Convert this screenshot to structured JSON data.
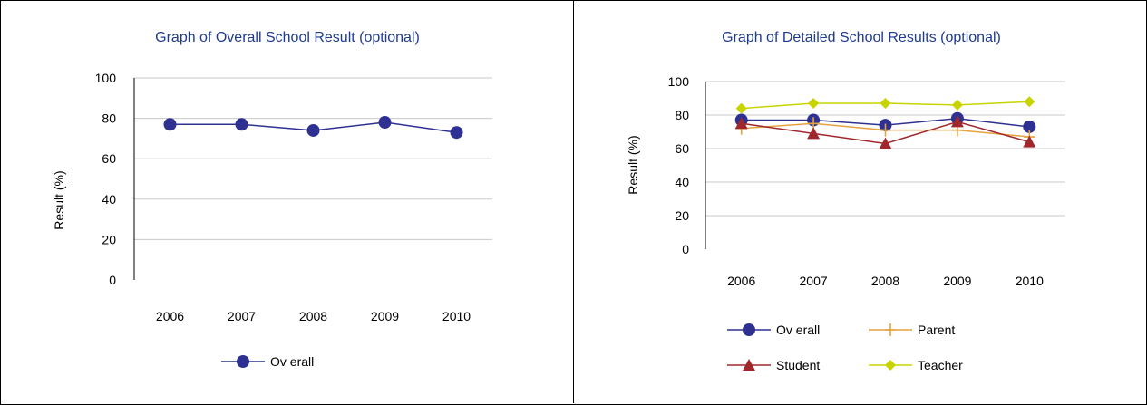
{
  "colors": {
    "overall": "#2e3192",
    "parent": "#e6a23c",
    "student": "#a0282d",
    "teacher": "#c8d400",
    "grid": "#c8c8c8",
    "title": "#1f3b8f"
  },
  "chart_data": [
    {
      "type": "line",
      "title": "Graph of Overall School Result (optional)",
      "xlabel": "",
      "ylabel": "Result (%)",
      "categories": [
        "2006",
        "2007",
        "2008",
        "2009",
        "2010"
      ],
      "ylim": [
        0,
        100
      ],
      "yticks": [
        "0",
        "20",
        "40",
        "60",
        "80",
        "100"
      ],
      "grid": true,
      "legend_position": "bottom",
      "series": [
        {
          "name": "Ov erall",
          "values": [
            77,
            77,
            74,
            78,
            73
          ],
          "color": "#2e3192",
          "marker": "circle"
        }
      ]
    },
    {
      "type": "line",
      "title": "Graph of Detailed School Results (optional)",
      "xlabel": "",
      "ylabel": "Result (%)",
      "categories": [
        "2006",
        "2007",
        "2008",
        "2009",
        "2010"
      ],
      "ylim": [
        0,
        100
      ],
      "yticks": [
        "0",
        "20",
        "40",
        "60",
        "80",
        "100"
      ],
      "grid": true,
      "legend_position": "bottom",
      "series": [
        {
          "name": "Ov erall",
          "values": [
            77,
            77,
            74,
            78,
            73
          ],
          "color": "#2e3192",
          "marker": "circle"
        },
        {
          "name": "Parent",
          "values": [
            72,
            75,
            71,
            71,
            67
          ],
          "color": "#e6a23c",
          "marker": "plus"
        },
        {
          "name": "Student",
          "values": [
            75,
            69,
            63,
            76,
            64
          ],
          "color": "#a0282d",
          "marker": "triangle"
        },
        {
          "name": "Teacher",
          "values": [
            84,
            87,
            87,
            86,
            88
          ],
          "color": "#c8d400",
          "marker": "diamond"
        }
      ]
    }
  ]
}
